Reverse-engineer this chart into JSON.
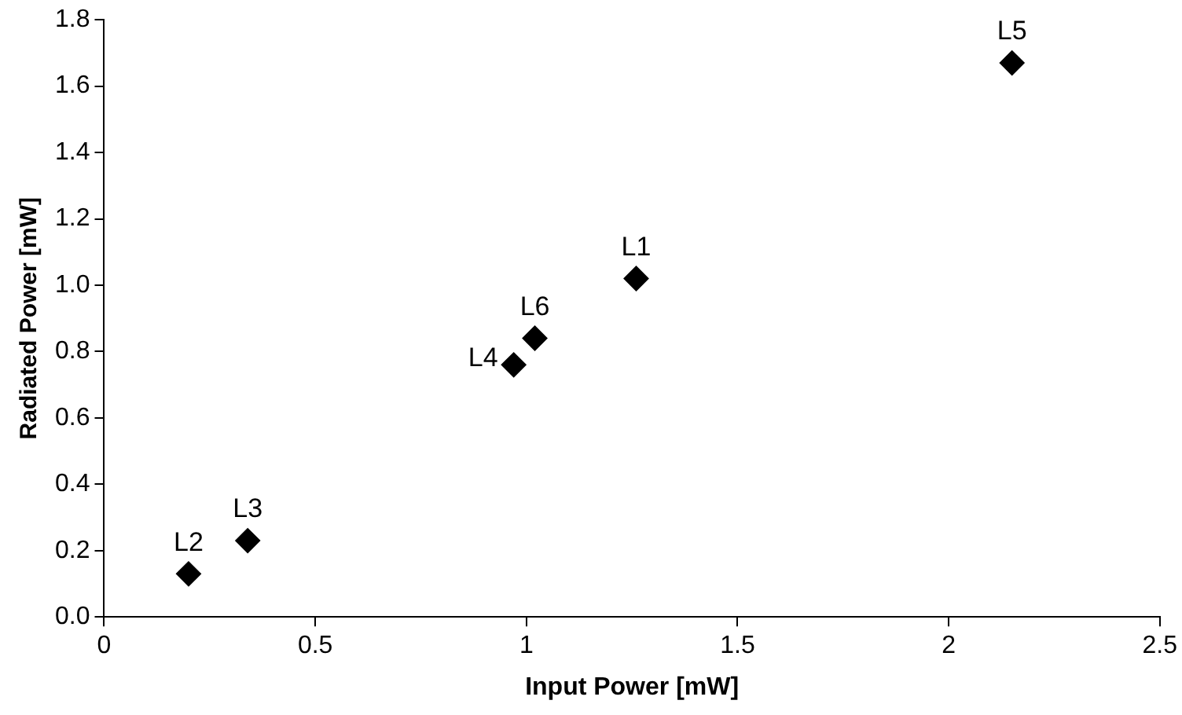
{
  "chart_data": {
    "type": "scatter",
    "xlabel": "Input Power [mW]",
    "ylabel": "Radiated Power [mW]",
    "x": [
      1.26,
      0.2,
      0.34,
      0.97,
      2.15,
      1.02
    ],
    "series": [
      {
        "color": "#000000",
        "values": [
          1.02,
          0.13,
          0.23,
          0.76,
          1.67,
          0.84
        ]
      }
    ],
    "marker": "diamond",
    "grid": false,
    "legend": false,
    "xlim": [
      0,
      2.5
    ],
    "xticks": [
      0,
      0.5,
      1,
      1.5,
      2,
      2.5
    ],
    "ylim": [
      0,
      1.8
    ],
    "yticks": [
      {
        "value": 0,
        "label": "0.0"
      },
      {
        "value": 0.2,
        "label": "0.2"
      },
      {
        "value": 0.4,
        "label": "0.4"
      },
      {
        "value": 0.6,
        "label": "0.6"
      },
      {
        "value": 0.8,
        "label": "0.8"
      },
      {
        "value": 1.0,
        "label": "1.0"
      },
      {
        "value": 1.2,
        "label": "1.2"
      },
      {
        "value": 1.4,
        "label": "1.4"
      },
      {
        "value": 1.6,
        "label": "1.6"
      },
      {
        "value": 1.8,
        "label": "1.8"
      }
    ],
    "annotations": [
      {
        "text": "L1",
        "x": 1.26,
        "y": 1.02
      },
      {
        "text": "L2",
        "x": 0.2,
        "y": 0.13
      },
      {
        "text": "L3",
        "x": 0.34,
        "y": 0.23
      },
      {
        "text": "L4",
        "x": 0.97,
        "y": 0.76
      },
      {
        "text": "L5",
        "x": 2.15,
        "y": 1.67
      },
      {
        "text": "L6",
        "x": 1.02,
        "y": 0.84
      }
    ]
  }
}
